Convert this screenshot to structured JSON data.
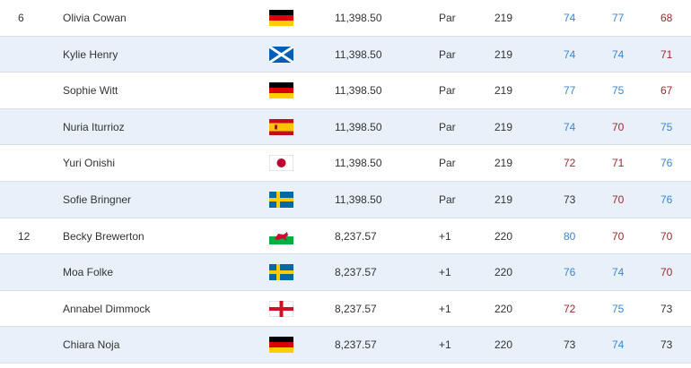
{
  "table": {
    "rows": [
      {
        "position": 6,
        "name": "Olivia Cowan",
        "points": {
          "value": 11398.5,
          "label": "11,398.50"
        },
        "to_par": "Par",
        "total": 219,
        "rounds": [
          74,
          77,
          68
        ],
        "round_colors": [
          "#3a86d6",
          "#3a86d6",
          "#a0282d"
        ]
      },
      {
        "position": null,
        "name": "Kylie Henry",
        "points": {
          "value": 11398.5,
          "label": "11,398.50"
        },
        "to_par": "Par",
        "total": 219,
        "rounds": [
          74,
          74,
          71
        ],
        "round_colors": [
          "#3a86d6",
          "#3a86d6",
          "#a0282d"
        ]
      },
      {
        "position": null,
        "name": "Sophie Witt",
        "points": {
          "value": 11398.5,
          "label": "11,398.50"
        },
        "to_par": "Par",
        "total": 219,
        "rounds": [
          77,
          75,
          67
        ],
        "round_colors": [
          "#3a86d6",
          "#3a86d6",
          "#a0282d"
        ]
      },
      {
        "position": null,
        "name": "Nuria Iturrioz",
        "points": {
          "value": 11398.5,
          "label": "11,398.50"
        },
        "to_par": "Par",
        "total": 219,
        "rounds": [
          74,
          70,
          75
        ],
        "round_colors": [
          "#3a86d6",
          "#a0282d",
          "#3a86d6"
        ]
      },
      {
        "position": null,
        "name": "Yuri Onishi",
        "points": {
          "value": 11398.5,
          "label": "11,398.50"
        },
        "to_par": "Par",
        "total": 219,
        "rounds": [
          72,
          71,
          76
        ],
        "round_colors": [
          "#a0282d",
          "#a0282d",
          "#3a86d6"
        ]
      },
      {
        "position": null,
        "name": "Sofie Bringner",
        "points": {
          "value": 11398.5,
          "label": "11,398.50"
        },
        "to_par": "Par",
        "total": 219,
        "rounds": [
          73,
          70,
          76
        ],
        "round_colors": [
          "#333333",
          "#a0282d",
          "#3a86d6"
        ]
      },
      {
        "position": 12,
        "name": "Becky Brewerton",
        "points": {
          "value": 8237.57,
          "label": "8,237.57"
        },
        "to_par": "+1",
        "total": 220,
        "rounds": [
          80,
          70,
          70
        ],
        "round_colors": [
          "#3a86d6",
          "#a0282d",
          "#a0282d"
        ]
      },
      {
        "position": null,
        "name": "Moa Folke",
        "points": {
          "value": 8237.57,
          "label": "8,237.57"
        },
        "to_par": "+1",
        "total": 220,
        "rounds": [
          76,
          74,
          70
        ],
        "round_colors": [
          "#3a86d6",
          "#3a86d6",
          "#a0282d"
        ]
      },
      {
        "position": null,
        "name": "Annabel Dimmock",
        "points": {
          "value": 8237.57,
          "label": "8,237.57"
        },
        "to_par": "+1",
        "total": 220,
        "rounds": [
          72,
          75,
          73
        ],
        "round_colors": [
          "#a0282d",
          "#3a86d6",
          "#333333"
        ]
      },
      {
        "position": null,
        "name": "Chiara Noja",
        "points": {
          "value": 8237.57,
          "label": "8,237.57"
        },
        "to_par": "+1",
        "total": 220,
        "rounds": [
          73,
          74,
          73
        ],
        "round_colors": [
          "#333333",
          "#3a86d6",
          "#333333"
        ]
      }
    ]
  }
}
